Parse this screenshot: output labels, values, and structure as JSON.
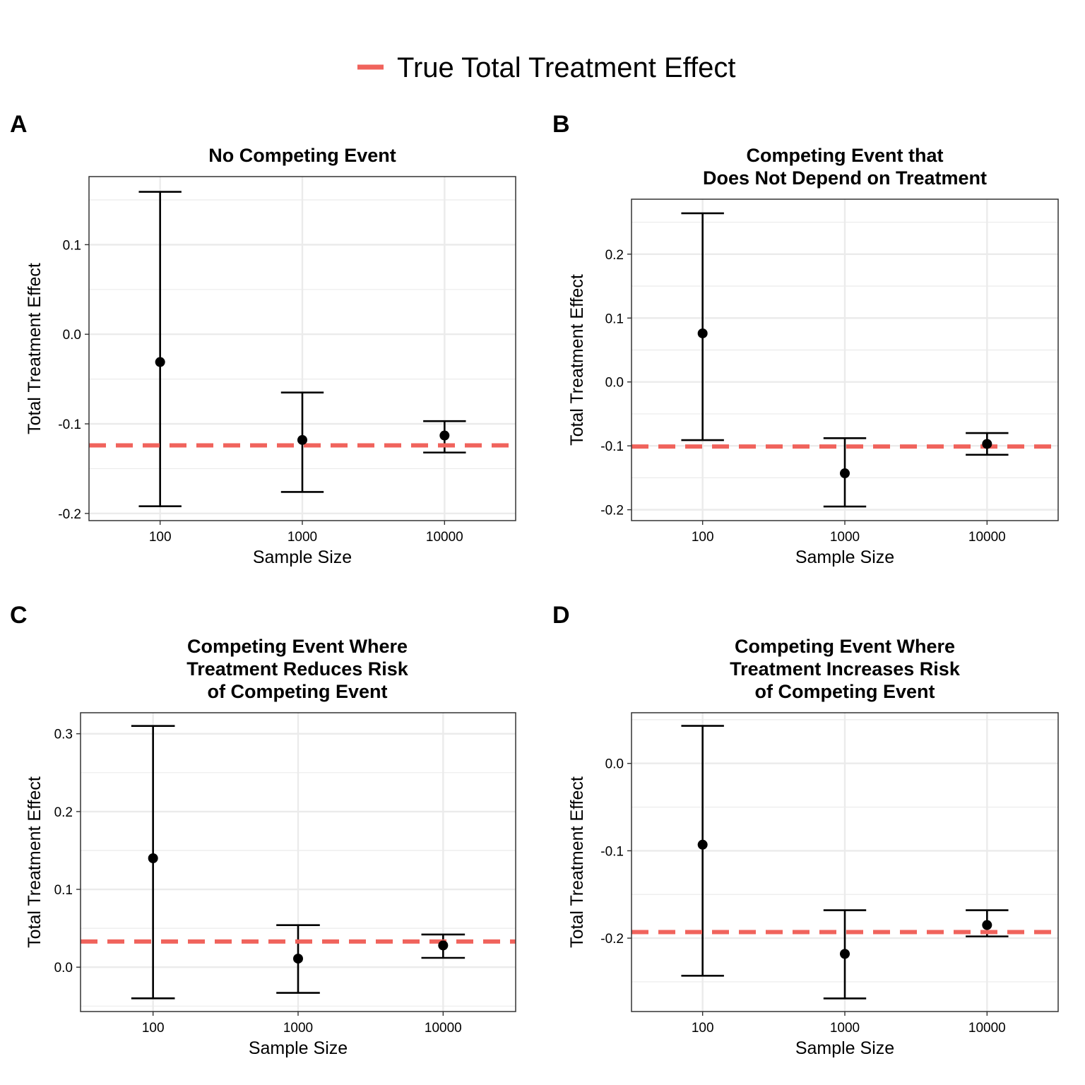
{
  "legend": {
    "label": "True Total Treatment Effect",
    "color": "#F0635C"
  },
  "colors": {
    "point": "#000000",
    "truth": "#F0635C",
    "grid": "#EBEBEB",
    "border": "#333333"
  },
  "chart_data": [
    {
      "panel": "A",
      "type": "scatter",
      "title": [
        "No Competing Event"
      ],
      "xlabel": "Sample Size",
      "ylabel": "Total Treatment Effect",
      "categories": [
        "100",
        "1000",
        "10000"
      ],
      "estimate": [
        -0.031,
        -0.118,
        -0.113
      ],
      "lower": [
        -0.192,
        -0.176,
        -0.132
      ],
      "upper": [
        0.159,
        -0.065,
        -0.097
      ],
      "true_effect": -0.124,
      "ylim": [
        -0.208,
        0.176
      ],
      "yticks": [
        -0.2,
        -0.1,
        0.0,
        0.1
      ],
      "ytick_labels": [
        "-0.2",
        "-0.1",
        "0.0",
        "0.1"
      ]
    },
    {
      "panel": "B",
      "type": "scatter",
      "title": [
        "Competing Event that",
        "Does Not Depend on Treatment"
      ],
      "xlabel": "Sample Size",
      "ylabel": "Total Treatment Effect",
      "categories": [
        "100",
        "1000",
        "10000"
      ],
      "estimate": [
        0.076,
        -0.143,
        -0.097
      ],
      "lower": [
        -0.091,
        -0.195,
        -0.114
      ],
      "upper": [
        0.264,
        -0.088,
        -0.08
      ],
      "true_effect": -0.101,
      "ylim": [
        -0.217,
        0.286
      ],
      "yticks": [
        -0.2,
        -0.1,
        0.0,
        0.1,
        0.2
      ],
      "ytick_labels": [
        "-0.2",
        "-0.1",
        "0.0",
        "0.1",
        "0.2"
      ]
    },
    {
      "panel": "C",
      "type": "scatter",
      "title": [
        "Competing Event Where",
        "Treatment Reduces Risk",
        "of Competing Event"
      ],
      "xlabel": "Sample Size",
      "ylabel": "Total Treatment Effect",
      "categories": [
        "100",
        "1000",
        "10000"
      ],
      "estimate": [
        0.14,
        0.011,
        0.028
      ],
      "lower": [
        -0.04,
        -0.033,
        0.012
      ],
      "upper": [
        0.31,
        0.054,
        0.042
      ],
      "true_effect": 0.033,
      "ylim": [
        -0.057,
        0.327
      ],
      "yticks": [
        0.0,
        0.1,
        0.2,
        0.3
      ],
      "ytick_labels": [
        "0.0",
        "0.1",
        "0.2",
        "0.3"
      ]
    },
    {
      "panel": "D",
      "type": "scatter",
      "title": [
        "Competing Event Where",
        "Treatment Increases Risk",
        "of Competing Event"
      ],
      "xlabel": "Sample Size",
      "ylabel": "Total Treatment Effect",
      "categories": [
        "100",
        "1000",
        "10000"
      ],
      "estimate": [
        -0.093,
        -0.218,
        -0.185
      ],
      "lower": [
        -0.243,
        -0.269,
        -0.198
      ],
      "upper": [
        0.043,
        -0.168,
        -0.168
      ],
      "true_effect": -0.193,
      "ylim": [
        -0.284,
        0.058
      ],
      "yticks": [
        -0.2,
        -0.1,
        0.0
      ],
      "ytick_labels": [
        "-0.2",
        "-0.1",
        "0.0"
      ]
    }
  ]
}
